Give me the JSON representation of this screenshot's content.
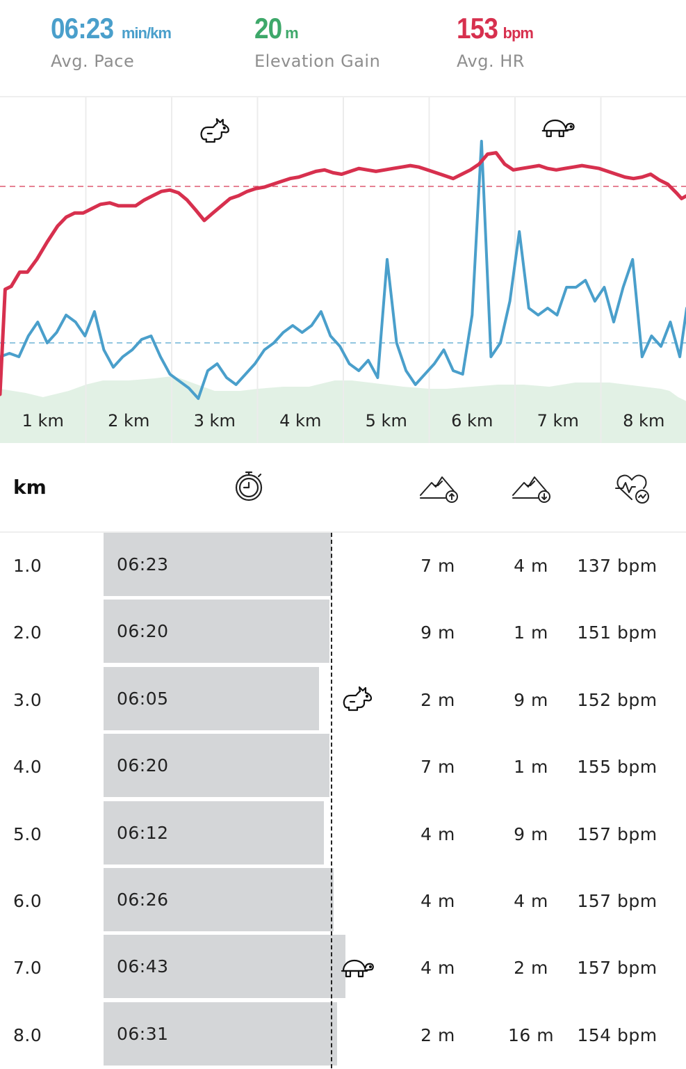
{
  "stats": {
    "pace": {
      "value": "06:23",
      "unit": "min/km",
      "label": "Avg. Pace",
      "color": "#4a9fcb"
    },
    "elevation": {
      "value": "20",
      "unit": "m",
      "label": "Elevation Gain",
      "color": "#3ea86a"
    },
    "hr": {
      "value": "153",
      "unit": "bpm",
      "label": "Avg. HR",
      "color": "#d7304e"
    }
  },
  "chart_data": {
    "type": "line",
    "x_categories": [
      "1 km",
      "2 km",
      "3 km",
      "4 km",
      "5 km",
      "6 km",
      "7 km",
      "8 km"
    ],
    "x_range_km": [
      0,
      8.0
    ],
    "grid": "vertical gridlines at each km",
    "series": [
      {
        "key": "hr",
        "color": "#d7304e",
        "unit": "bpm",
        "average": 153,
        "y_range": [
          95,
          166
        ],
        "points": [
          [
            0.0,
            95.0
          ],
          [
            0.06,
            124.3
          ],
          [
            0.13,
            125.1
          ],
          [
            0.23,
            129.1
          ],
          [
            0.32,
            129.1
          ],
          [
            0.43,
            132.7
          ],
          [
            0.55,
            137.5
          ],
          [
            0.67,
            141.9
          ],
          [
            0.77,
            144.4
          ],
          [
            0.87,
            145.6
          ],
          [
            0.97,
            145.6
          ],
          [
            1.07,
            146.8
          ],
          [
            1.17,
            148.0
          ],
          [
            1.28,
            148.4
          ],
          [
            1.38,
            147.6
          ],
          [
            1.48,
            147.6
          ],
          [
            1.58,
            147.6
          ],
          [
            1.68,
            149.2
          ],
          [
            1.78,
            150.4
          ],
          [
            1.88,
            151.6
          ],
          [
            1.98,
            152.0
          ],
          [
            2.08,
            151.2
          ],
          [
            2.18,
            149.2
          ],
          [
            2.28,
            146.4
          ],
          [
            2.38,
            143.5
          ],
          [
            2.48,
            145.6
          ],
          [
            2.58,
            147.6
          ],
          [
            2.68,
            149.6
          ],
          [
            2.78,
            150.4
          ],
          [
            2.88,
            151.6
          ],
          [
            2.98,
            152.4
          ],
          [
            3.08,
            152.8
          ],
          [
            3.18,
            153.6
          ],
          [
            3.28,
            154.4
          ],
          [
            3.38,
            155.2
          ],
          [
            3.48,
            155.6
          ],
          [
            3.58,
            156.4
          ],
          [
            3.68,
            157.2
          ],
          [
            3.78,
            157.6
          ],
          [
            3.88,
            156.8
          ],
          [
            3.98,
            156.4
          ],
          [
            4.08,
            157.2
          ],
          [
            4.18,
            158.0
          ],
          [
            4.28,
            157.6
          ],
          [
            4.38,
            157.2
          ],
          [
            4.48,
            157.6
          ],
          [
            4.58,
            158.0
          ],
          [
            4.68,
            158.4
          ],
          [
            4.78,
            158.8
          ],
          [
            4.88,
            158.4
          ],
          [
            4.98,
            157.6
          ],
          [
            5.08,
            156.8
          ],
          [
            5.18,
            156.0
          ],
          [
            5.28,
            155.2
          ],
          [
            5.38,
            156.4
          ],
          [
            5.48,
            157.6
          ],
          [
            5.58,
            159.2
          ],
          [
            5.68,
            162.0
          ],
          [
            5.78,
            162.4
          ],
          [
            5.88,
            159.2
          ],
          [
            5.98,
            157.6
          ],
          [
            6.08,
            158.0
          ],
          [
            6.18,
            158.4
          ],
          [
            6.28,
            158.8
          ],
          [
            6.38,
            158.0
          ],
          [
            6.48,
            157.6
          ],
          [
            6.58,
            158.0
          ],
          [
            6.68,
            158.4
          ],
          [
            6.78,
            158.8
          ],
          [
            6.88,
            158.4
          ],
          [
            6.98,
            158.0
          ],
          [
            7.08,
            157.2
          ],
          [
            7.18,
            156.4
          ],
          [
            7.28,
            155.6
          ],
          [
            7.38,
            155.2
          ],
          [
            7.48,
            155.6
          ],
          [
            7.58,
            156.4
          ],
          [
            7.68,
            154.8
          ],
          [
            7.78,
            153.6
          ],
          [
            7.88,
            151.2
          ],
          [
            7.94,
            149.6
          ],
          [
            8.0,
            150.4
          ]
        ]
      },
      {
        "key": "pace",
        "color": "#4a9fcb",
        "unit": "min/km",
        "average": "06:23",
        "points": [
          [
            0.0,
            -0.2
          ],
          [
            0.11,
            -0.15
          ],
          [
            0.22,
            -0.2
          ],
          [
            0.33,
            0.1
          ],
          [
            0.44,
            0.3
          ],
          [
            0.55,
            0.0
          ],
          [
            0.66,
            0.15
          ],
          [
            0.77,
            0.4
          ],
          [
            0.88,
            0.3
          ],
          [
            0.99,
            0.1
          ],
          [
            1.1,
            0.45
          ],
          [
            1.21,
            -0.1
          ],
          [
            1.32,
            -0.35
          ],
          [
            1.43,
            -0.2
          ],
          [
            1.54,
            -0.1
          ],
          [
            1.65,
            0.05
          ],
          [
            1.76,
            0.1
          ],
          [
            1.87,
            -0.2
          ],
          [
            1.98,
            -0.45
          ],
          [
            2.09,
            -0.55
          ],
          [
            2.2,
            -0.65
          ],
          [
            2.31,
            -0.8
          ],
          [
            2.42,
            -0.4
          ],
          [
            2.53,
            -0.3
          ],
          [
            2.64,
            -0.5
          ],
          [
            2.75,
            -0.6
          ],
          [
            2.86,
            -0.45
          ],
          [
            2.97,
            -0.3
          ],
          [
            3.08,
            -0.1
          ],
          [
            3.19,
            0.0
          ],
          [
            3.3,
            0.15
          ],
          [
            3.41,
            0.25
          ],
          [
            3.52,
            0.15
          ],
          [
            3.63,
            0.25
          ],
          [
            3.74,
            0.45
          ],
          [
            3.85,
            0.1
          ],
          [
            3.96,
            -0.05
          ],
          [
            4.07,
            -0.3
          ],
          [
            4.18,
            -0.4
          ],
          [
            4.29,
            -0.25
          ],
          [
            4.4,
            -0.5
          ],
          [
            4.51,
            1.2
          ],
          [
            4.62,
            0.0
          ],
          [
            4.73,
            -0.4
          ],
          [
            4.84,
            -0.6
          ],
          [
            4.95,
            -0.45
          ],
          [
            5.06,
            -0.3
          ],
          [
            5.17,
            -0.1
          ],
          [
            5.28,
            -0.4
          ],
          [
            5.39,
            -0.45
          ],
          [
            5.5,
            0.4
          ],
          [
            5.61,
            2.9
          ],
          [
            5.72,
            -0.2
          ],
          [
            5.83,
            0.0
          ],
          [
            5.94,
            0.6
          ],
          [
            6.05,
            1.6
          ],
          [
            6.16,
            0.5
          ],
          [
            6.27,
            0.4
          ],
          [
            6.38,
            0.5
          ],
          [
            6.49,
            0.4
          ],
          [
            6.6,
            0.8
          ],
          [
            6.71,
            0.8
          ],
          [
            6.82,
            0.9
          ],
          [
            6.93,
            0.6
          ],
          [
            7.04,
            0.8
          ],
          [
            7.15,
            0.3
          ],
          [
            7.26,
            0.8
          ],
          [
            7.37,
            1.2
          ],
          [
            7.48,
            -0.2
          ],
          [
            7.59,
            0.1
          ],
          [
            7.7,
            -0.05
          ],
          [
            7.81,
            0.3
          ],
          [
            7.92,
            -0.2
          ],
          [
            8.0,
            0.5
          ]
        ]
      },
      {
        "key": "elevation",
        "color": "#e2f1e5",
        "unit": "m",
        "points": [
          [
            0.0,
            0.3
          ],
          [
            0.3,
            0.2
          ],
          [
            0.5,
            0.1
          ],
          [
            0.8,
            0.25
          ],
          [
            1.0,
            0.4
          ],
          [
            1.2,
            0.5
          ],
          [
            1.5,
            0.5
          ],
          [
            1.8,
            0.55
          ],
          [
            2.0,
            0.6
          ],
          [
            2.1,
            0.55
          ],
          [
            2.3,
            0.4
          ],
          [
            2.5,
            0.25
          ],
          [
            2.8,
            0.25
          ],
          [
            3.0,
            0.3
          ],
          [
            3.3,
            0.35
          ],
          [
            3.6,
            0.35
          ],
          [
            3.9,
            0.5
          ],
          [
            4.1,
            0.5
          ],
          [
            4.3,
            0.45
          ],
          [
            4.5,
            0.4
          ],
          [
            4.7,
            0.35
          ],
          [
            5.0,
            0.3
          ],
          [
            5.2,
            0.3
          ],
          [
            5.5,
            0.35
          ],
          [
            5.8,
            0.4
          ],
          [
            6.1,
            0.4
          ],
          [
            6.4,
            0.35
          ],
          [
            6.7,
            0.45
          ],
          [
            6.9,
            0.45
          ],
          [
            7.1,
            0.45
          ],
          [
            7.3,
            0.4
          ],
          [
            7.5,
            0.35
          ],
          [
            7.7,
            0.3
          ],
          [
            7.8,
            0.25
          ],
          [
            7.9,
            0.1
          ],
          [
            8.0,
            0.0
          ]
        ]
      }
    ],
    "markers": [
      {
        "icon": "rabbit-icon",
        "meaning": "fastest km",
        "km": 3
      },
      {
        "icon": "turtle-icon",
        "meaning": "slowest km",
        "km": 7
      }
    ]
  },
  "table": {
    "header": {
      "km_label": "km",
      "pace_icon": "stopwatch-icon",
      "ascent_icon": "mountain-up-icon",
      "descent_icon": "mountain-down-icon",
      "hr_icon": "heart-rate-icon"
    },
    "average_pace_sec": 383,
    "rows": [
      {
        "km": "1.0",
        "pace": "06:23",
        "pace_sec": 383,
        "up": "7 m",
        "down": "4 m",
        "hr": "137 bpm",
        "badge": ""
      },
      {
        "km": "2.0",
        "pace": "06:20",
        "pace_sec": 380,
        "up": "9 m",
        "down": "1 m",
        "hr": "151 bpm",
        "badge": ""
      },
      {
        "km": "3.0",
        "pace": "06:05",
        "pace_sec": 365,
        "up": "2 m",
        "down": "9 m",
        "hr": "152 bpm",
        "badge": "rabbit-icon"
      },
      {
        "km": "4.0",
        "pace": "06:20",
        "pace_sec": 380,
        "up": "7 m",
        "down": "1 m",
        "hr": "155 bpm",
        "badge": ""
      },
      {
        "km": "5.0",
        "pace": "06:12",
        "pace_sec": 372,
        "up": "4 m",
        "down": "9 m",
        "hr": "157 bpm",
        "badge": ""
      },
      {
        "km": "6.0",
        "pace": "06:26",
        "pace_sec": 386,
        "up": "4 m",
        "down": "4 m",
        "hr": "157 bpm",
        "badge": ""
      },
      {
        "km": "7.0",
        "pace": "06:43",
        "pace_sec": 403,
        "up": "4 m",
        "down": "2 m",
        "hr": "157 bpm",
        "badge": "turtle-icon"
      },
      {
        "km": "8.0",
        "pace": "06:31",
        "pace_sec": 391,
        "up": "2 m",
        "down": "16 m",
        "hr": "154 bpm",
        "badge": ""
      }
    ]
  }
}
